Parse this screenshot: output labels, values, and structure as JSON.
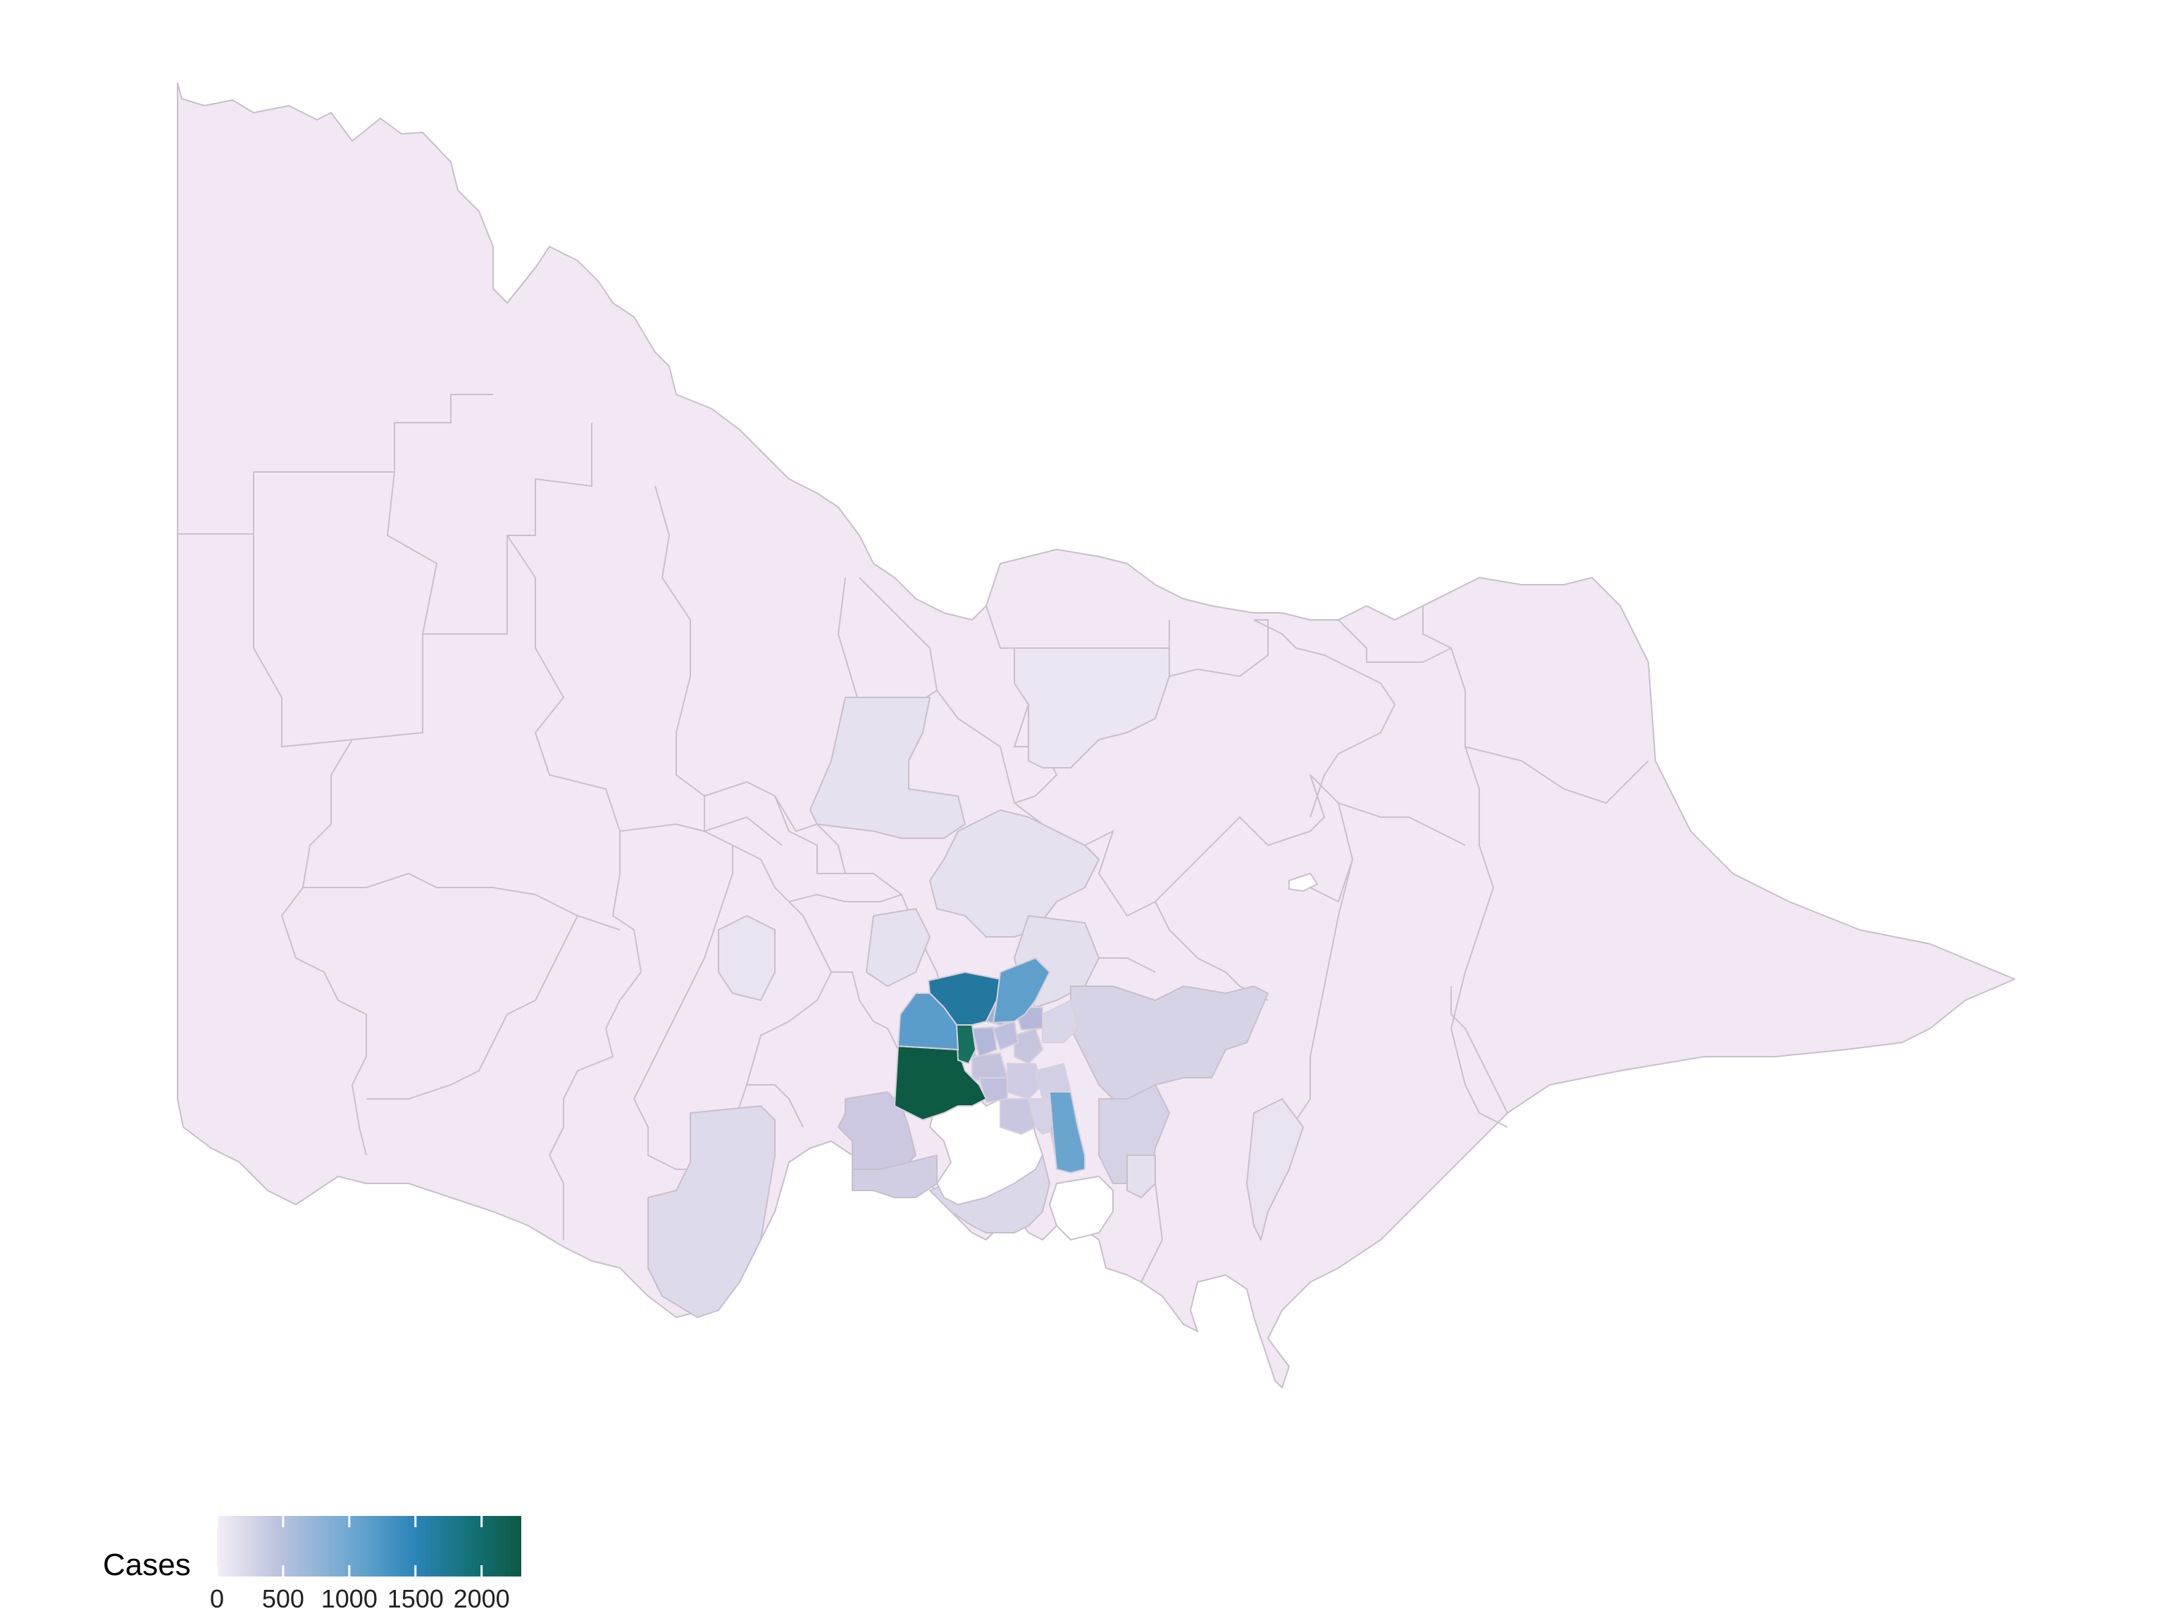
{
  "map": {
    "region": "Victoria",
    "fill_base": "#f1e8f3",
    "border_color": "#c9bfcb",
    "water_color": "#ffffff",
    "highlighted_lgas": [
      {
        "id": "lga-a",
        "level": 2250,
        "color": "#0d5a45"
      },
      {
        "id": "lga-b",
        "level": 1650,
        "color": "#22789e"
      },
      {
        "id": "lga-c",
        "level": 1100,
        "color": "#5a9ccb"
      },
      {
        "id": "lga-d",
        "level": 1050,
        "color": "#5f9fcc"
      },
      {
        "id": "lga-e",
        "level": 1000,
        "color": "#6aa5cf"
      },
      {
        "id": "lga-f",
        "level": 1950,
        "color": "#167060"
      }
    ]
  },
  "legend": {
    "title": "Cases",
    "ticks": [
      {
        "label": "0",
        "value": 0
      },
      {
        "label": "500",
        "value": 500
      },
      {
        "label": "1000",
        "value": 1000
      },
      {
        "label": "1500",
        "value": 1500
      },
      {
        "label": "2000",
        "value": 2000
      }
    ],
    "range": [
      0,
      2300
    ],
    "gradient_colors": [
      "#f4eef7",
      "#bcc3df",
      "#6ba6d0",
      "#2b85b8",
      "#136f72",
      "#0d5a45"
    ]
  }
}
